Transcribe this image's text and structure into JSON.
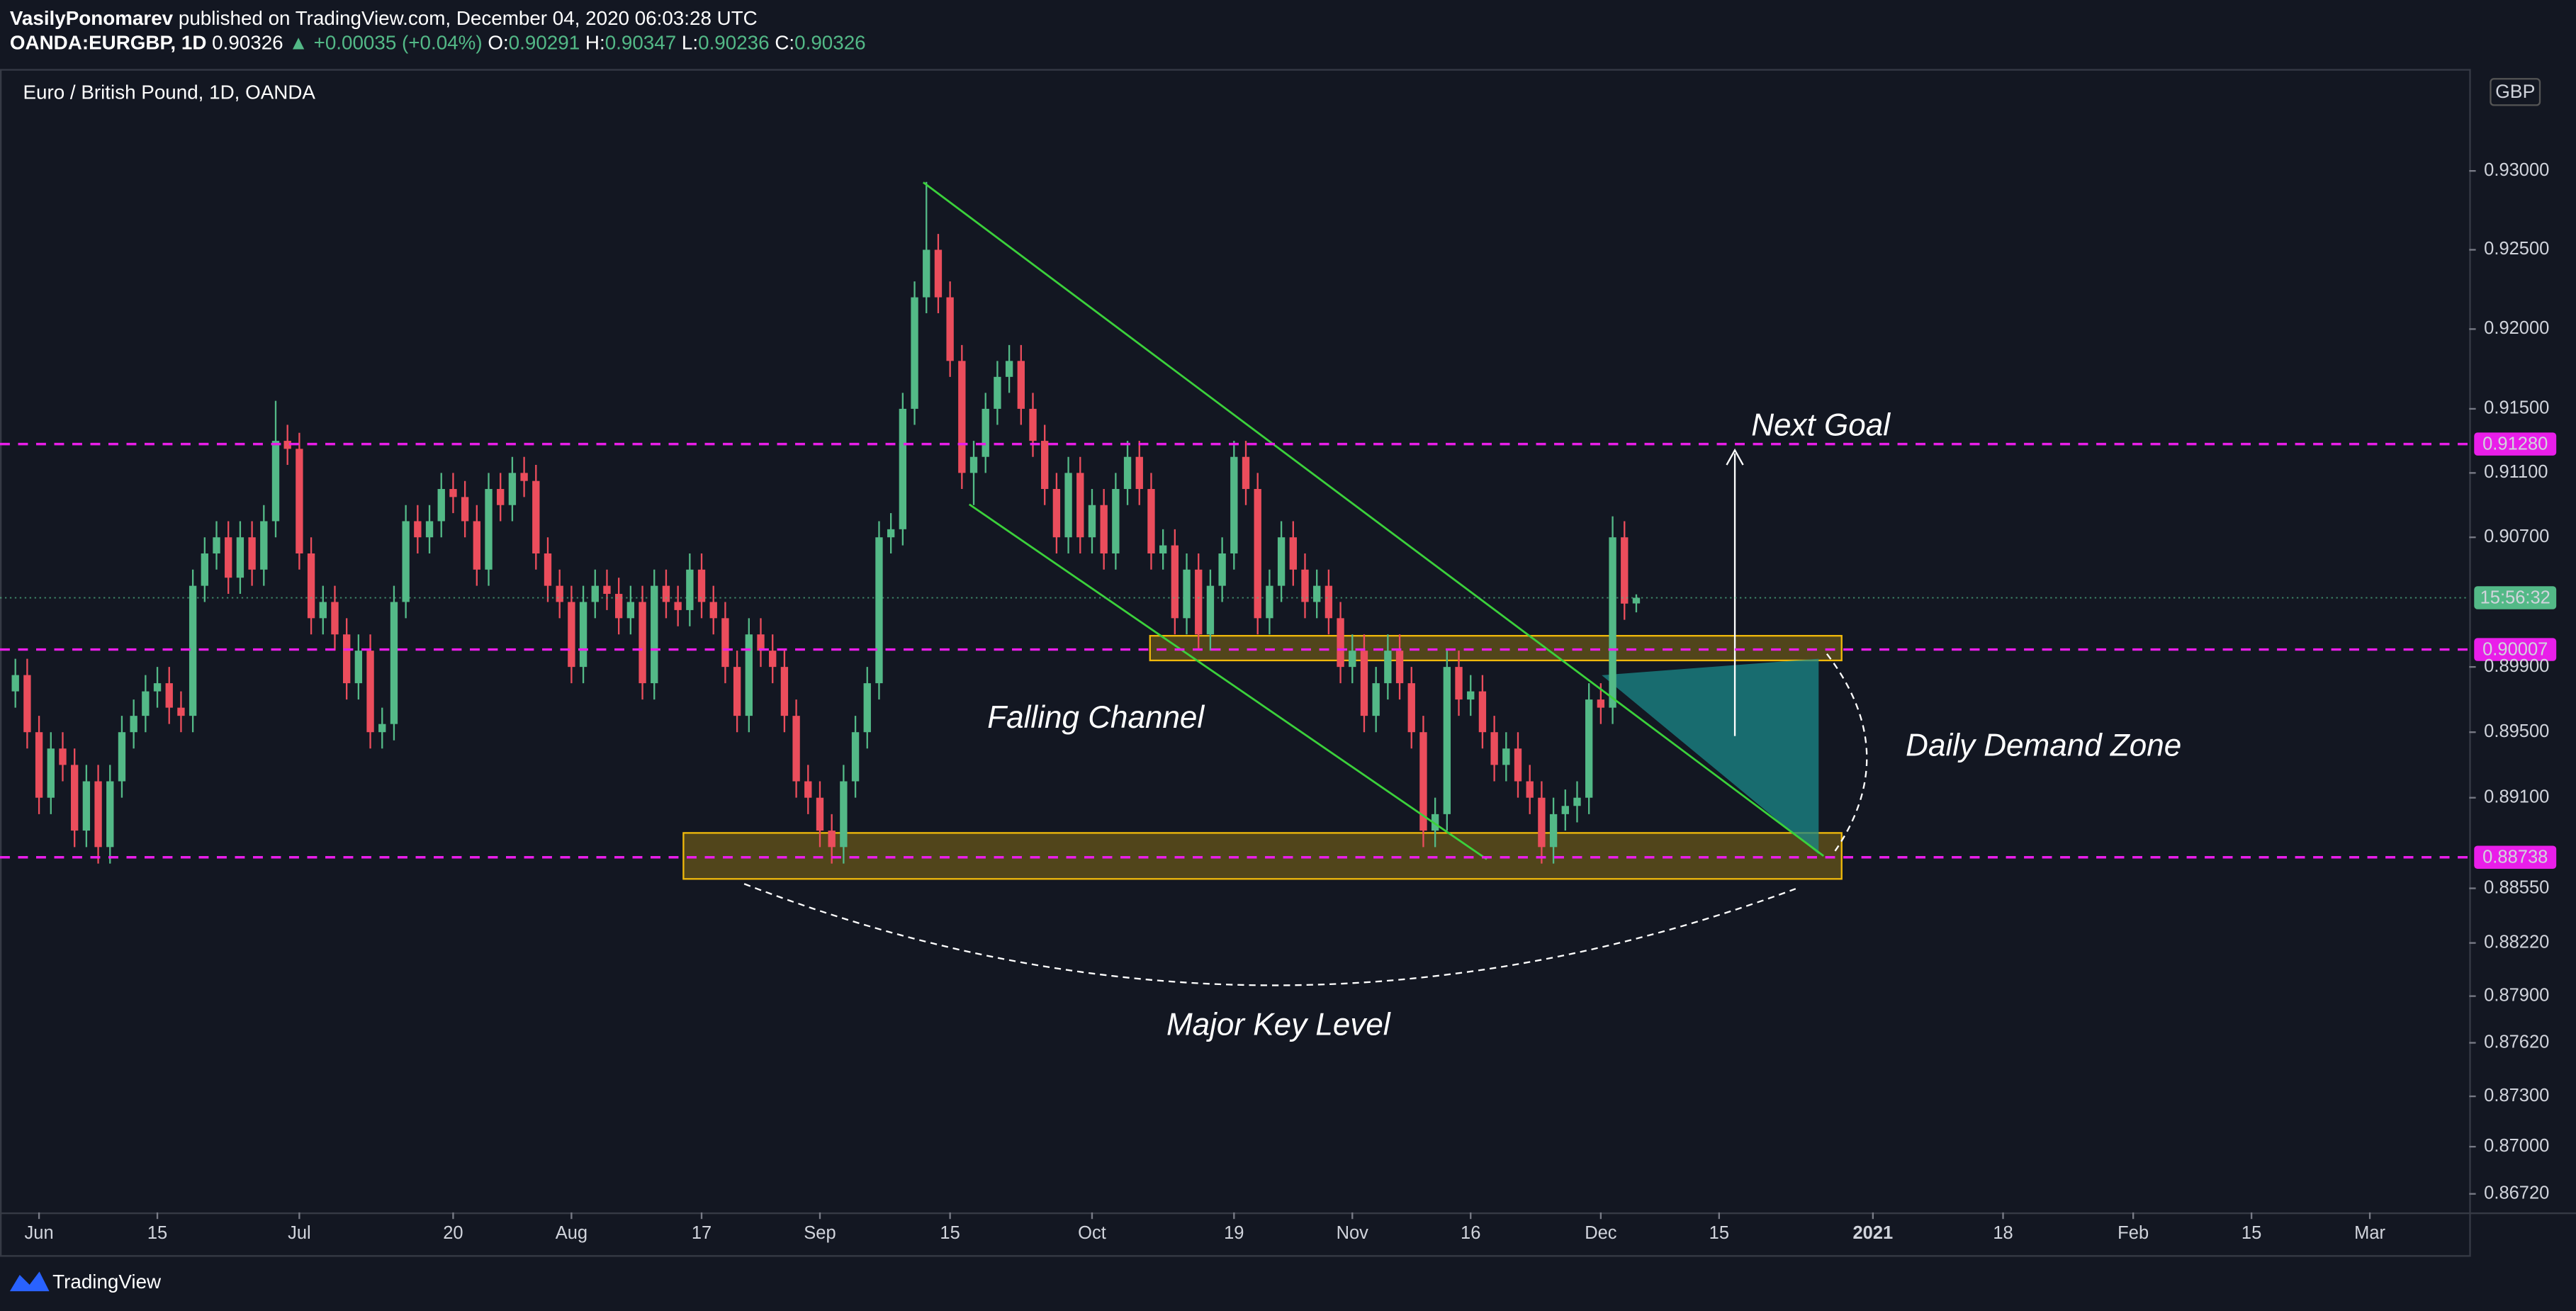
{
  "header": {
    "author": "VasilyPonomarev",
    "published": "published on TradingView.com, December 04, 2020 06:03:28 UTC",
    "symbol": "OANDA:EURGBP, 1D",
    "price": "0.90326",
    "change": "▲ +0.00035 (+0.04%)",
    "ohlc": [
      {
        "label": "O:",
        "value": "0.90291"
      },
      {
        "label": "H:",
        "value": "0.90347"
      },
      {
        "label": "L:",
        "value": "0.90236"
      },
      {
        "label": "C:",
        "value": "0.90326"
      }
    ]
  },
  "chart_data": {
    "type": "candlestick",
    "title": "Euro / British Pound, 1D, OANDA",
    "currency": "GBP",
    "up_color": "#53b987",
    "down_color": "#eb4d5c",
    "log_scale": true,
    "open": [
      0.8975,
      0.8985,
      0.895,
      0.891,
      0.894,
      0.893,
      0.889,
      0.892,
      0.888,
      0.892,
      0.895,
      0.896,
      0.8975,
      0.898,
      0.8965,
      0.896,
      0.904,
      0.906,
      0.907,
      0.9045,
      0.907,
      0.905,
      0.908,
      0.913,
      0.9125,
      0.906,
      0.902,
      0.903,
      0.901,
      0.898,
      0.9,
      0.895,
      0.8955,
      0.903,
      0.908,
      0.907,
      0.908,
      0.91,
      0.9095,
      0.908,
      0.905,
      0.91,
      0.909,
      0.911,
      0.9105,
      0.906,
      0.904,
      0.903,
      0.899,
      0.903,
      0.904,
      0.9035,
      0.902,
      0.903,
      0.898,
      0.904,
      0.903,
      0.9025,
      0.905,
      0.903,
      0.902,
      0.899,
      0.896,
      0.901,
      0.9,
      0.899,
      0.896,
      0.892,
      0.891,
      0.889,
      0.888,
      0.892,
      0.895,
      0.898,
      0.907,
      0.9075,
      0.915,
      0.922,
      0.925,
      0.922,
      0.918,
      0.911,
      0.912,
      0.915,
      0.917,
      0.918,
      0.915,
      0.913,
      0.91,
      0.907,
      0.911,
      0.907,
      0.909,
      0.906,
      0.91,
      0.912,
      0.91,
      0.906,
      0.9065,
      0.902,
      0.905,
      0.901,
      0.904,
      0.906,
      0.912,
      0.91,
      0.902,
      0.904,
      0.907,
      0.905,
      0.903,
      0.904,
      0.902,
      0.899,
      0.9,
      0.896,
      0.898,
      0.9,
      0.898,
      0.895,
      0.889,
      0.89,
      0.899,
      0.897,
      0.8975,
      0.895,
      0.893,
      0.894,
      0.892,
      0.891,
      0.888,
      0.89,
      0.8905,
      0.891,
      0.897,
      0.8965,
      0.907,
      0.90291
    ],
    "high": [
      0.8995,
      0.8995,
      0.896,
      0.895,
      0.895,
      0.894,
      0.893,
      0.893,
      0.893,
      0.896,
      0.897,
      0.8985,
      0.899,
      0.899,
      0.8975,
      0.905,
      0.907,
      0.908,
      0.908,
      0.908,
      0.908,
      0.909,
      0.9155,
      0.914,
      0.9135,
      0.907,
      0.904,
      0.904,
      0.902,
      0.901,
      0.901,
      0.8965,
      0.904,
      0.909,
      0.909,
      0.909,
      0.911,
      0.911,
      0.9105,
      0.909,
      0.911,
      0.911,
      0.912,
      0.912,
      0.9115,
      0.907,
      0.905,
      0.904,
      0.904,
      0.905,
      0.905,
      0.9045,
      0.904,
      0.904,
      0.905,
      0.905,
      0.904,
      0.906,
      0.906,
      0.904,
      0.903,
      0.9,
      0.902,
      0.902,
      0.901,
      0.9,
      0.897,
      0.893,
      0.892,
      0.89,
      0.893,
      0.896,
      0.899,
      0.908,
      0.9085,
      0.916,
      0.923,
      0.9293,
      0.926,
      0.923,
      0.919,
      0.913,
      0.916,
      0.918,
      0.919,
      0.919,
      0.916,
      0.914,
      0.911,
      0.912,
      0.912,
      0.91,
      0.91,
      0.911,
      0.913,
      0.913,
      0.911,
      0.9075,
      0.9075,
      0.906,
      0.906,
      0.905,
      0.907,
      0.913,
      0.913,
      0.911,
      0.905,
      0.908,
      0.908,
      0.906,
      0.905,
      0.905,
      0.903,
      0.901,
      0.901,
      0.899,
      0.901,
      0.901,
      0.899,
      0.896,
      0.891,
      0.9,
      0.9,
      0.8985,
      0.8985,
      0.896,
      0.895,
      0.895,
      0.893,
      0.892,
      0.891,
      0.8915,
      0.892,
      0.898,
      0.898,
      0.9083,
      0.908,
      0.90347
    ],
    "low": [
      0.8965,
      0.894,
      0.89,
      0.89,
      0.892,
      0.888,
      0.888,
      0.887,
      0.887,
      0.891,
      0.894,
      0.895,
      0.8965,
      0.8955,
      0.895,
      0.895,
      0.903,
      0.905,
      0.9035,
      0.9035,
      0.904,
      0.904,
      0.907,
      0.9115,
      0.905,
      0.901,
      0.901,
      0.9,
      0.897,
      0.897,
      0.894,
      0.894,
      0.8945,
      0.902,
      0.906,
      0.906,
      0.907,
      0.9085,
      0.907,
      0.904,
      0.904,
      0.908,
      0.908,
      0.9095,
      0.905,
      0.903,
      0.902,
      0.898,
      0.898,
      0.902,
      0.9025,
      0.901,
      0.901,
      0.897,
      0.897,
      0.902,
      0.9015,
      0.9015,
      0.902,
      0.901,
      0.898,
      0.895,
      0.895,
      0.899,
      0.898,
      0.895,
      0.891,
      0.89,
      0.888,
      0.887,
      0.887,
      0.891,
      0.894,
      0.897,
      0.906,
      0.9065,
      0.914,
      0.921,
      0.921,
      0.917,
      0.91,
      0.909,
      0.911,
      0.914,
      0.916,
      0.914,
      0.912,
      0.909,
      0.906,
      0.906,
      0.906,
      0.906,
      0.905,
      0.905,
      0.909,
      0.909,
      0.905,
      0.905,
      0.901,
      0.901,
      0.9,
      0.9,
      0.903,
      0.905,
      0.909,
      0.901,
      0.901,
      0.903,
      0.904,
      0.902,
      0.902,
      0.901,
      0.898,
      0.898,
      0.895,
      0.895,
      0.897,
      0.897,
      0.894,
      0.888,
      0.888,
      0.889,
      0.896,
      0.896,
      0.894,
      0.892,
      0.892,
      0.891,
      0.89,
      0.887,
      0.887,
      0.889,
      0.8895,
      0.89,
      0.8955,
      0.8955,
      0.9019,
      0.90236
    ],
    "close": [
      0.8985,
      0.895,
      0.891,
      0.894,
      0.893,
      0.889,
      0.892,
      0.888,
      0.892,
      0.895,
      0.896,
      0.8975,
      0.898,
      0.8965,
      0.896,
      0.904,
      0.906,
      0.907,
      0.9045,
      0.907,
      0.905,
      0.908,
      0.913,
      0.9125,
      0.906,
      0.902,
      0.903,
      0.901,
      0.898,
      0.9,
      0.895,
      0.8955,
      0.903,
      0.908,
      0.907,
      0.908,
      0.91,
      0.9095,
      0.908,
      0.905,
      0.91,
      0.909,
      0.911,
      0.9105,
      0.906,
      0.904,
      0.903,
      0.899,
      0.903,
      0.904,
      0.9035,
      0.902,
      0.903,
      0.898,
      0.904,
      0.903,
      0.9025,
      0.905,
      0.903,
      0.902,
      0.899,
      0.896,
      0.901,
      0.9,
      0.899,
      0.896,
      0.892,
      0.891,
      0.889,
      0.888,
      0.892,
      0.895,
      0.898,
      0.907,
      0.9075,
      0.915,
      0.922,
      0.925,
      0.922,
      0.918,
      0.911,
      0.912,
      0.915,
      0.917,
      0.918,
      0.915,
      0.913,
      0.91,
      0.907,
      0.911,
      0.907,
      0.909,
      0.906,
      0.91,
      0.912,
      0.91,
      0.906,
      0.9065,
      0.902,
      0.905,
      0.901,
      0.904,
      0.906,
      0.912,
      0.91,
      0.902,
      0.904,
      0.907,
      0.905,
      0.903,
      0.904,
      0.902,
      0.899,
      0.9,
      0.896,
      0.898,
      0.9,
      0.898,
      0.895,
      0.889,
      0.89,
      0.899,
      0.897,
      0.8975,
      0.895,
      0.893,
      0.894,
      0.892,
      0.891,
      0.888,
      0.89,
      0.8905,
      0.891,
      0.897,
      0.8965,
      0.907,
      0.9029,
      0.90326
    ],
    "xlim": [
      -1.3,
      207.4
    ],
    "xticks": [
      {
        "value": 2,
        "label": "Jun"
      },
      {
        "value": 12,
        "label": "15"
      },
      {
        "value": 24,
        "label": "Jul"
      },
      {
        "value": 37,
        "label": "20"
      },
      {
        "value": 47,
        "label": "Aug"
      },
      {
        "value": 58,
        "label": "17"
      },
      {
        "value": 68,
        "label": "Sep"
      },
      {
        "value": 79,
        "label": "15"
      },
      {
        "value": 91,
        "label": "Oct"
      },
      {
        "value": 103,
        "label": "19"
      },
      {
        "value": 113,
        "label": "Nov"
      },
      {
        "value": 123,
        "label": "16"
      },
      {
        "value": 134,
        "label": "Dec"
      },
      {
        "value": 144,
        "label": "15"
      },
      {
        "value": 157,
        "label": "2021"
      },
      {
        "value": 168,
        "label": "18"
      },
      {
        "value": 179,
        "label": "Feb"
      },
      {
        "value": 189,
        "label": "15"
      },
      {
        "value": 199,
        "label": "Mar"
      }
    ],
    "ylim": [
      0.8661,
      0.9365
    ],
    "yticks": [
      {
        "value": 0.93,
        "label": "0.93000"
      },
      {
        "value": 0.925,
        "label": "0.92500"
      },
      {
        "value": 0.92,
        "label": "0.92000"
      },
      {
        "value": 0.915,
        "label": "0.91500"
      },
      {
        "value": 0.911,
        "label": "0.91100"
      },
      {
        "value": 0.907,
        "label": "0.90700"
      },
      {
        "value": 0.899,
        "label": "0.89900"
      },
      {
        "value": 0.895,
        "label": "0.89500"
      },
      {
        "value": 0.891,
        "label": "0.89100"
      },
      {
        "value": 0.8855,
        "label": "0.88550"
      },
      {
        "value": 0.8822,
        "label": "0.88220"
      },
      {
        "value": 0.879,
        "label": "0.87900"
      },
      {
        "value": 0.8762,
        "label": "0.87620"
      },
      {
        "value": 0.873,
        "label": "0.87300"
      },
      {
        "value": 0.87,
        "label": "0.87000"
      },
      {
        "value": 0.8672,
        "label": "0.86720"
      }
    ],
    "levels": [
      {
        "value": 0.9128,
        "label": "0.91280"
      },
      {
        "value": 0.90007,
        "label": "0.90007"
      },
      {
        "value": 0.88738,
        "label": "0.88738"
      }
    ],
    "level_color": "#e91ee9",
    "countdown": "15:56:32",
    "annotations": [
      "Next Goal",
      "Falling Channel",
      "Daily Demand Zone",
      "Major Key Level"
    ]
  },
  "footer": {
    "brand": "TradingView"
  }
}
